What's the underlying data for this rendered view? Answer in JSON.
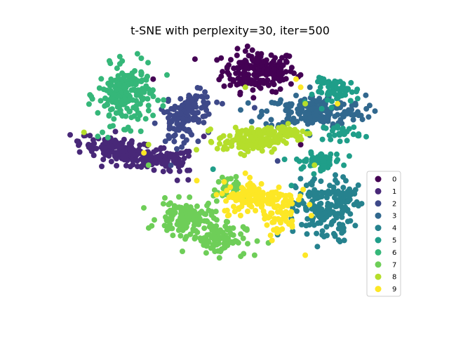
{
  "chart_data": {
    "type": "scatter",
    "title": "t-SNE with perplexity=30, iter=500",
    "xlabel": "",
    "ylabel": "",
    "axes_visible": false,
    "grid": false,
    "legend_position": "right",
    "xlim": [
      -70,
      70
    ],
    "ylim": [
      -60,
      60
    ],
    "series": [
      {
        "name": "0",
        "color": "#440154",
        "clusters": [
          {
            "cx": 12,
            "cy": 48,
            "sx": 8,
            "sy": 5,
            "n": 190
          }
        ],
        "strays": [
          [
            -34,
            44
          ],
          [
            22,
            44
          ],
          [
            30,
            12
          ],
          [
            6,
            44
          ],
          [
            14,
            42
          ]
        ]
      },
      {
        "name": "1",
        "color": "#482878",
        "clusters": [
          {
            "cx": -46,
            "cy": 8,
            "sx": 10,
            "sy": 2.8,
            "n": 180,
            "tilt": -0.28
          },
          {
            "cx": -28,
            "cy": 4,
            "sx": 6,
            "sy": 3,
            "n": 60
          }
        ],
        "strays": [
          [
            -52,
            14
          ],
          [
            -12,
            16
          ],
          [
            -62,
            12
          ]
        ]
      },
      {
        "name": "2",
        "color": "#3e4989",
        "clusters": [
          {
            "cx": -16,
            "cy": 30,
            "sx": 4,
            "sy": 4,
            "n": 80
          },
          {
            "cx": -24,
            "cy": 22,
            "sx": 4,
            "sy": 5,
            "n": 60
          }
        ],
        "strays": [
          [
            -4,
            32
          ],
          [
            10,
            30
          ],
          [
            -10,
            18
          ],
          [
            6,
            10
          ],
          [
            20,
            4
          ]
        ]
      },
      {
        "name": "3",
        "color": "#31688e",
        "clusters": [
          {
            "cx": 36,
            "cy": 28,
            "sx": 11,
            "sy": 4,
            "n": 190
          }
        ],
        "strays": [
          [
            22,
            18
          ],
          [
            28,
            36
          ],
          [
            34,
            40
          ],
          [
            20,
            32
          ],
          [
            44,
            22
          ]
        ]
      },
      {
        "name": "4",
        "color": "#26828e",
        "clusters": [
          {
            "cx": 40,
            "cy": -20,
            "sx": 6,
            "sy": 8,
            "n": 160
          },
          {
            "cx": 50,
            "cy": -14,
            "sx": 3,
            "sy": 3,
            "n": 30
          }
        ],
        "strays": [
          [
            26,
            -24
          ],
          [
            20,
            -32
          ],
          [
            30,
            -12
          ]
        ]
      },
      {
        "name": "5",
        "color": "#1f9e89",
        "clusters": [
          {
            "cx": 38,
            "cy": 4,
            "sx": 5,
            "sy": 2,
            "n": 60
          },
          {
            "cx": 46,
            "cy": 38,
            "sx": 5,
            "sy": 3,
            "n": 60
          },
          {
            "cx": 48,
            "cy": 18,
            "sx": 4,
            "sy": 2,
            "n": 30
          }
        ],
        "strays": [
          [
            40,
            44
          ],
          [
            -8,
            0
          ],
          [
            -4,
            -12
          ],
          [
            26,
            -8
          ]
        ]
      },
      {
        "name": "6",
        "color": "#35b779",
        "clusters": [
          {
            "cx": -46,
            "cy": 36,
            "sx": 6,
            "sy": 7,
            "n": 200
          }
        ],
        "strays": [
          [
            -28,
            46
          ],
          [
            -58,
            16
          ],
          [
            -42,
            48
          ],
          [
            -56,
            18
          ]
        ]
      },
      {
        "name": "7",
        "color": "#6ece58",
        "clusters": [
          {
            "cx": -20,
            "cy": -24,
            "sx": 6,
            "sy": 4,
            "n": 130
          },
          {
            "cx": -6,
            "cy": -34,
            "sx": 6,
            "sy": 4,
            "n": 90
          },
          {
            "cx": -2,
            "cy": -10,
            "sx": 3,
            "sy": 3,
            "n": 30
          }
        ],
        "strays": [
          [
            10,
            -42
          ],
          [
            -36,
            2
          ],
          [
            -4,
            -4
          ],
          [
            16,
            -36
          ]
        ]
      },
      {
        "name": "8",
        "color": "#b5de2b",
        "clusters": [
          {
            "cx": 8,
            "cy": 14,
            "sx": 7,
            "sy": 3,
            "n": 120
          },
          {
            "cx": 22,
            "cy": 18,
            "sx": 6,
            "sy": 2,
            "n": 60
          }
        ],
        "strays": [
          [
            -64,
            18
          ],
          [
            -36,
            12
          ],
          [
            6,
            40
          ],
          [
            36,
            2
          ],
          [
            32,
            32
          ]
        ]
      },
      {
        "name": "9",
        "color": "#fde725",
        "clusters": [
          {
            "cx": 12,
            "cy": -14,
            "sx": 8,
            "sy": 4,
            "n": 150
          },
          {
            "cx": 20,
            "cy": -24,
            "sx": 4,
            "sy": 4,
            "n": 40
          }
        ],
        "strays": [
          [
            28,
            44
          ],
          [
            32,
            -42
          ],
          [
            6,
            -2
          ],
          [
            46,
            32
          ],
          [
            30,
            40
          ],
          [
            -38,
            8
          ]
        ]
      }
    ]
  }
}
